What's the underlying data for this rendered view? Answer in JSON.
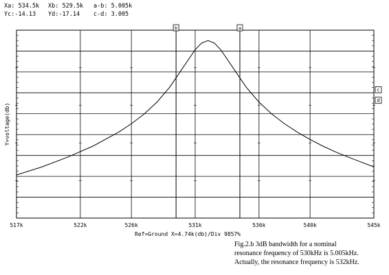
{
  "readouts": {
    "xa": "Xa: 534.5k",
    "xb": "Xb: 529.5k",
    "ab": "a-b: 5.005k",
    "yc": "Yc:-14.13",
    "yd": "Yd:-17.14",
    "cd": "c-d: 3.005"
  },
  "footer_text": "Ref=Ground  X=4.74k(db)/Div 9857%",
  "caption": {
    "line1": "Fig.2.b 3dB bandwidth for a nominal",
    "line2": "resonance frequency of 530kHz is 5.005kHz.",
    "line3": "Actually, the resonance frequency is 532kHz."
  },
  "chart_data": {
    "type": "line",
    "title": "",
    "xlabel": "",
    "ylabel": "Y=voltage(db)",
    "x_tick_labels": [
      "517k",
      "522k",
      "526k",
      "531k",
      "536k",
      "540k",
      "545k"
    ],
    "x_ticks": [
      517,
      522,
      526,
      531,
      536,
      540,
      545
    ],
    "xlim": [
      517,
      545
    ],
    "ylim": [
      -51,
      3
    ],
    "grid": true,
    "series": [
      {
        "x": [
          517,
          519,
          521,
          523,
          525,
          526,
          527,
          528,
          529,
          530,
          531,
          531.5,
          532,
          532.5,
          533,
          534,
          535,
          536,
          537,
          538,
          539,
          540,
          541,
          542,
          543,
          544,
          545
        ],
        "y": [
          -38.6,
          -36.3,
          -33.5,
          -30.3,
          -26.3,
          -23.9,
          -21.1,
          -17.7,
          -13.4,
          -8.0,
          -2.6,
          -0.7,
          0,
          -0.7,
          -2.6,
          -8.0,
          -13.4,
          -17.7,
          -21.1,
          -23.9,
          -26.3,
          -28.4,
          -30.3,
          -32.0,
          -33.5,
          -34.9,
          -36.3
        ]
      }
    ],
    "markers": [
      {
        "label": "b",
        "x": 529.5,
        "position": "top"
      },
      {
        "label": "a",
        "x": 534.5,
        "position": "top"
      },
      {
        "label": "c",
        "y": -14.13,
        "position": "right"
      },
      {
        "label": "d",
        "y": -17.14,
        "position": "right"
      }
    ]
  }
}
